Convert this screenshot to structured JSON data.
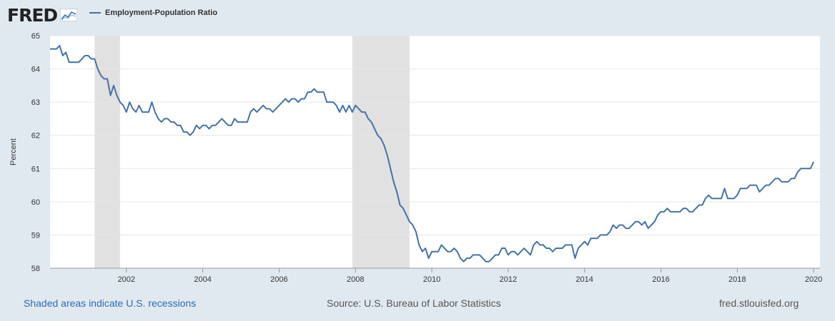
{
  "header": {
    "logo_text": "FRED",
    "legend_label": "Employment-Population Ratio"
  },
  "footer": {
    "recession_note": "Shaded areas indicate U.S. recessions",
    "source": "Source: U.S. Bureau of Labor Statistics",
    "site": "fred.stlouisfed.org"
  },
  "colors": {
    "line": "#4572a7",
    "recession": "#e1e1e1",
    "background": "#e1e9f0",
    "plot": "#ffffff"
  },
  "chart_data": {
    "type": "line",
    "title": "",
    "ylabel": "Percent",
    "xlabel": "",
    "ylim": [
      58,
      65
    ],
    "xlim": [
      2000.0,
      2020.1667
    ],
    "yticks": [
      "58",
      "59",
      "60",
      "61",
      "62",
      "63",
      "64",
      "65"
    ],
    "xticks": [
      "2002",
      "2004",
      "2006",
      "2008",
      "2010",
      "2012",
      "2014",
      "2016",
      "2018",
      "2020"
    ],
    "grid": true,
    "legend_position": "top-left",
    "recessions": [
      {
        "start": "2001-03",
        "end": "2001-11"
      },
      {
        "start": "2007-12",
        "end": "2009-06"
      }
    ],
    "series": [
      {
        "name": "Employment-Population Ratio",
        "start": "2000-01",
        "frequency": "monthly",
        "values": [
          64.6,
          64.6,
          64.6,
          64.7,
          64.4,
          64.5,
          64.2,
          64.2,
          64.2,
          64.2,
          64.3,
          64.4,
          64.4,
          64.3,
          64.3,
          64.0,
          63.8,
          63.7,
          63.7,
          63.2,
          63.5,
          63.2,
          63.0,
          62.9,
          62.7,
          63.0,
          62.8,
          62.7,
          62.9,
          62.7,
          62.7,
          62.7,
          63.0,
          62.7,
          62.5,
          62.4,
          62.5,
          62.5,
          62.4,
          62.4,
          62.3,
          62.3,
          62.1,
          62.1,
          62.0,
          62.1,
          62.3,
          62.2,
          62.3,
          62.3,
          62.2,
          62.3,
          62.3,
          62.4,
          62.5,
          62.4,
          62.3,
          62.3,
          62.5,
          62.4,
          62.4,
          62.4,
          62.4,
          62.7,
          62.8,
          62.7,
          62.8,
          62.9,
          62.8,
          62.8,
          62.7,
          62.8,
          62.9,
          63.0,
          63.1,
          63.0,
          63.1,
          63.1,
          63.0,
          63.1,
          63.1,
          63.3,
          63.3,
          63.4,
          63.3,
          63.3,
          63.3,
          63.0,
          63.0,
          63.0,
          62.9,
          62.7,
          62.9,
          62.7,
          62.9,
          62.7,
          62.9,
          62.8,
          62.7,
          62.7,
          62.5,
          62.4,
          62.2,
          62.0,
          61.9,
          61.7,
          61.4,
          61.0,
          60.6,
          60.3,
          59.9,
          59.8,
          59.6,
          59.4,
          59.3,
          59.1,
          58.7,
          58.5,
          58.6,
          58.3,
          58.5,
          58.5,
          58.5,
          58.7,
          58.6,
          58.5,
          58.5,
          58.6,
          58.5,
          58.3,
          58.2,
          58.3,
          58.3,
          58.4,
          58.4,
          58.4,
          58.3,
          58.2,
          58.2,
          58.3,
          58.4,
          58.4,
          58.6,
          58.6,
          58.4,
          58.5,
          58.5,
          58.4,
          58.5,
          58.6,
          58.5,
          58.4,
          58.7,
          58.8,
          58.7,
          58.7,
          58.6,
          58.6,
          58.5,
          58.6,
          58.6,
          58.6,
          58.7,
          58.7,
          58.7,
          58.3,
          58.6,
          58.7,
          58.8,
          58.7,
          58.9,
          58.9,
          58.9,
          59.0,
          59.0,
          59.0,
          59.1,
          59.3,
          59.2,
          59.3,
          59.3,
          59.2,
          59.2,
          59.3,
          59.4,
          59.4,
          59.3,
          59.4,
          59.2,
          59.3,
          59.4,
          59.6,
          59.7,
          59.7,
          59.8,
          59.7,
          59.7,
          59.7,
          59.7,
          59.8,
          59.8,
          59.7,
          59.7,
          59.8,
          59.9,
          59.9,
          60.1,
          60.2,
          60.1,
          60.1,
          60.1,
          60.1,
          60.4,
          60.1,
          60.1,
          60.1,
          60.2,
          60.4,
          60.4,
          60.4,
          60.5,
          60.5,
          60.5,
          60.3,
          60.4,
          60.5,
          60.5,
          60.6,
          60.7,
          60.7,
          60.6,
          60.6,
          60.6,
          60.7,
          60.7,
          60.9,
          61.0,
          61.0,
          61.0,
          61.0,
          61.2
        ]
      }
    ]
  }
}
